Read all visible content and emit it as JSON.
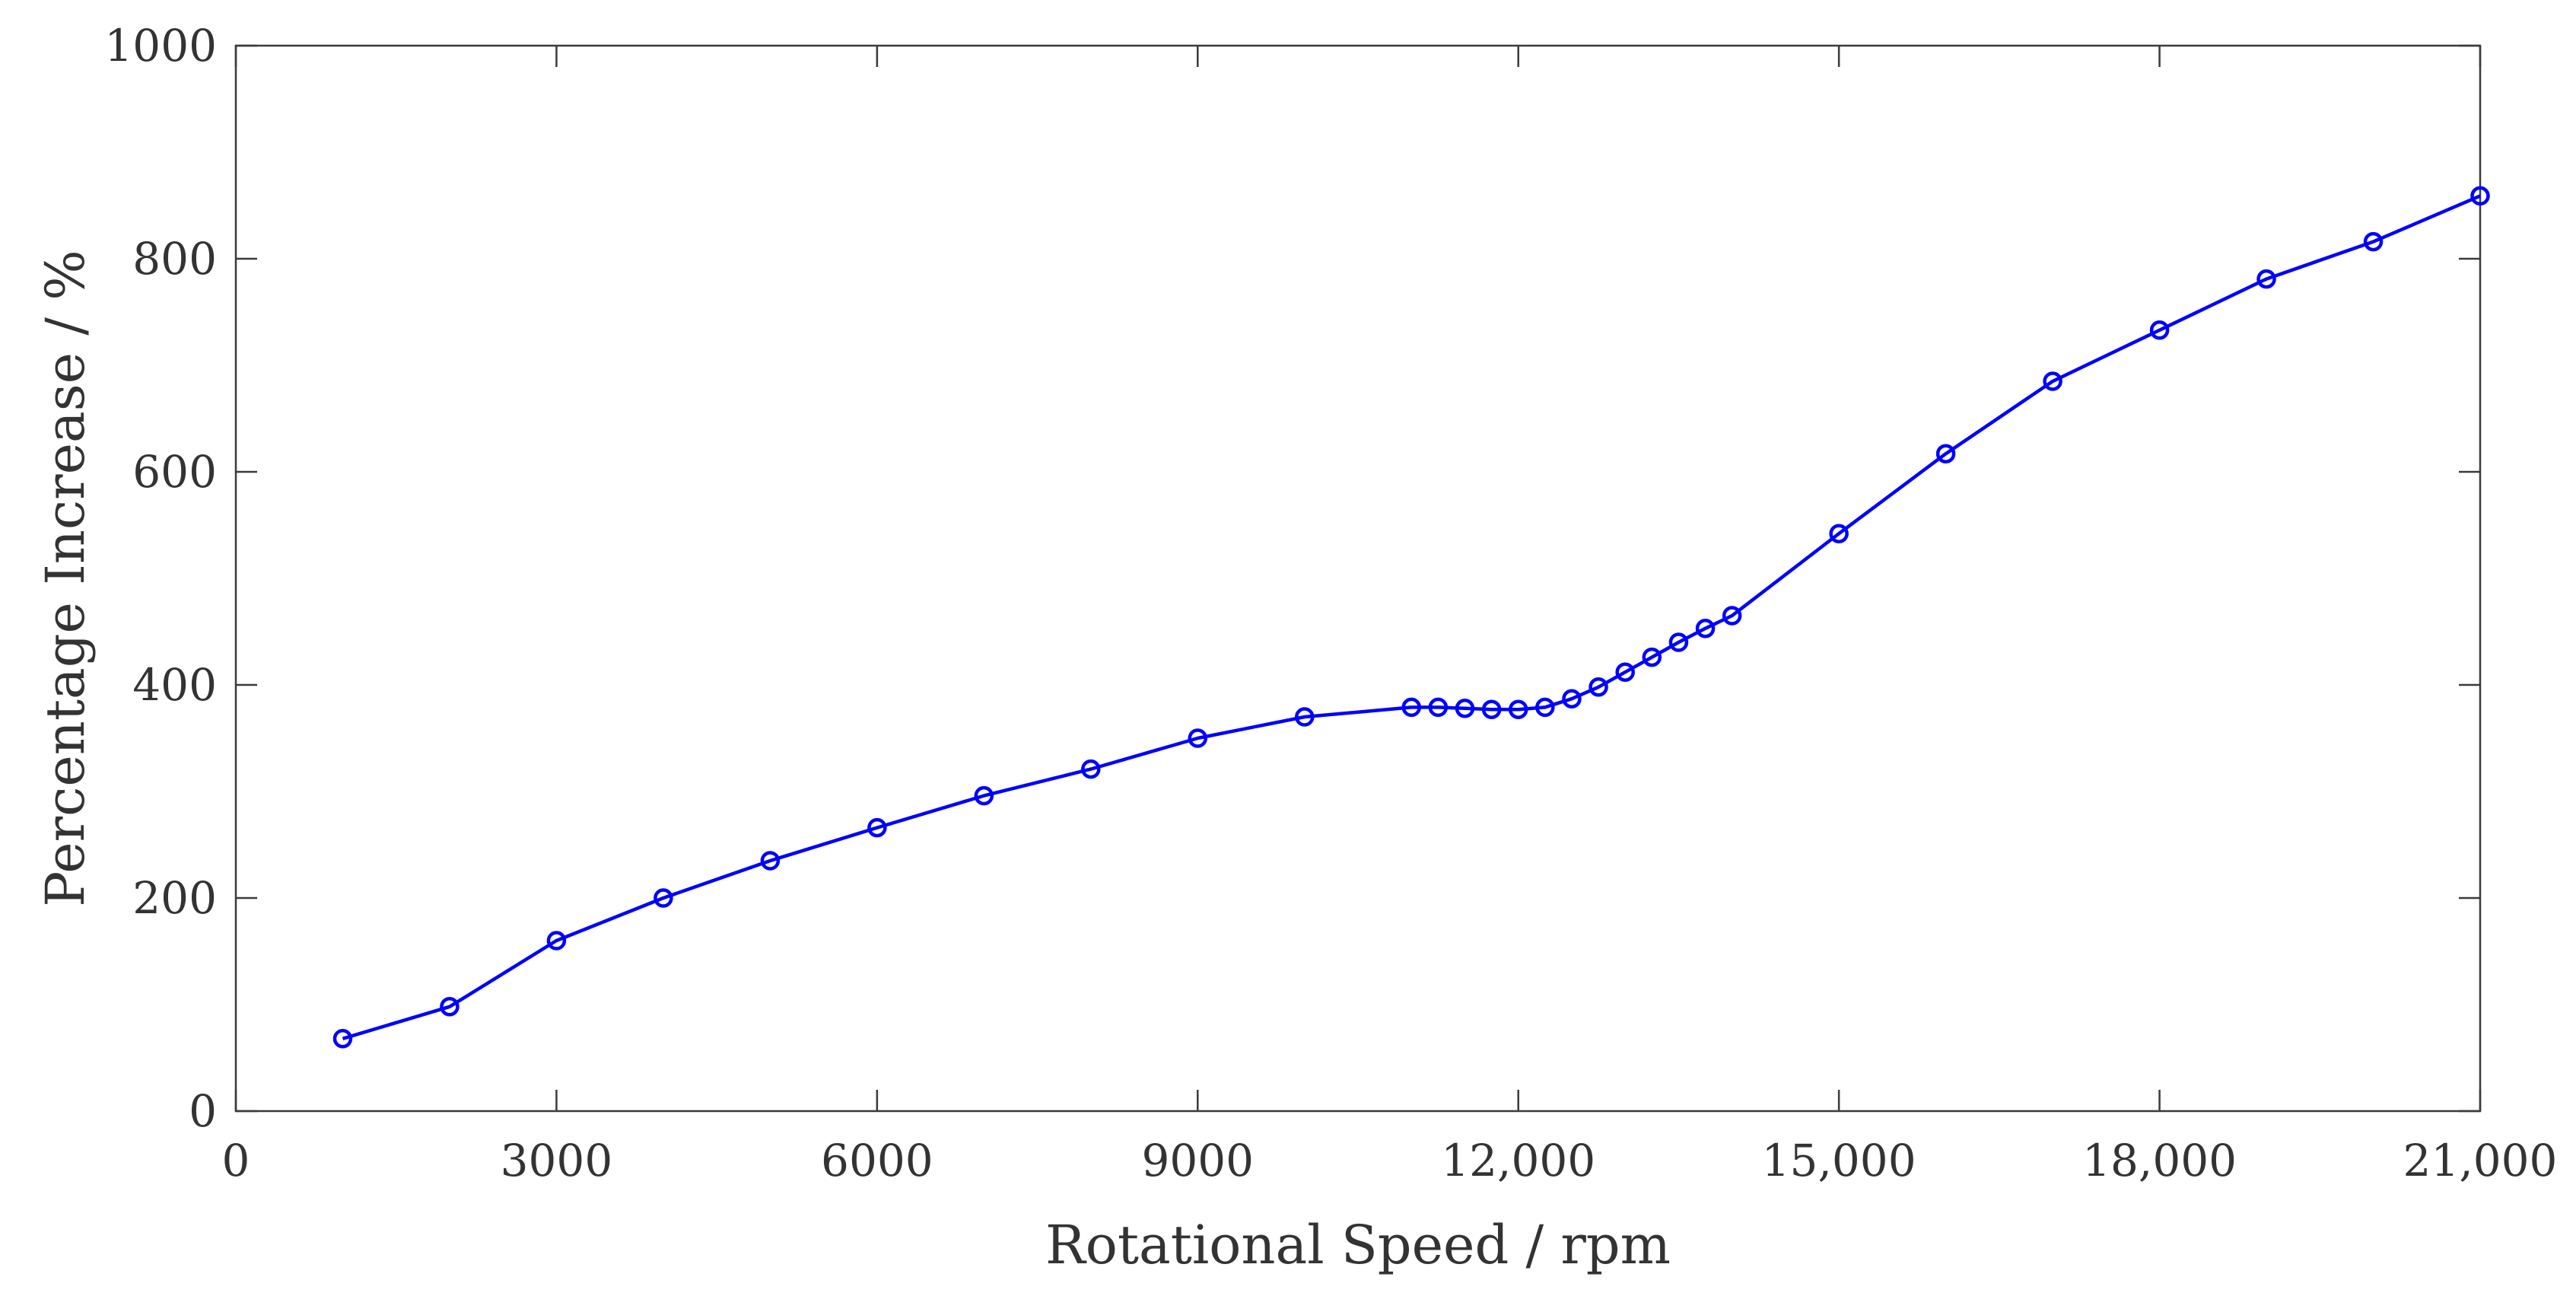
{
  "chart_data": {
    "type": "line",
    "title": "",
    "xlabel": "Rotational Speed / rpm",
    "ylabel": "Percentage Increase / %",
    "xlim": [
      0,
      21000
    ],
    "ylim": [
      0,
      1000
    ],
    "grid": false,
    "x_ticks": [
      0,
      3000,
      6000,
      9000,
      12000,
      15000,
      18000,
      21000
    ],
    "x_tick_labels": [
      "0",
      "3000",
      "6000",
      "9000",
      "12,000",
      "15,000",
      "18,000",
      "21,000"
    ],
    "y_ticks": [
      0,
      200,
      400,
      600,
      800,
      1000
    ],
    "y_tick_labels": [
      "0",
      "200",
      "400",
      "600",
      "800",
      "1000"
    ],
    "series": [
      {
        "name": "Percentage Increase",
        "color": "#0000ff",
        "marker": "circle",
        "x": [
          1000,
          2000,
          3000,
          4000,
          5000,
          6000,
          7000,
          8000,
          9000,
          10000,
          11000,
          11250,
          11500,
          11750,
          12000,
          12250,
          12500,
          12750,
          13000,
          13250,
          13500,
          13750,
          14000,
          15000,
          16000,
          17000,
          18000,
          19000,
          20000,
          21000
        ],
        "y": [
          68,
          98,
          160,
          200,
          235,
          266,
          296,
          321,
          350,
          370,
          379,
          379,
          378,
          377,
          377,
          379,
          387,
          398,
          412,
          426,
          440,
          453,
          465,
          542,
          617,
          685,
          733,
          781,
          816,
          859
        ]
      }
    ]
  }
}
